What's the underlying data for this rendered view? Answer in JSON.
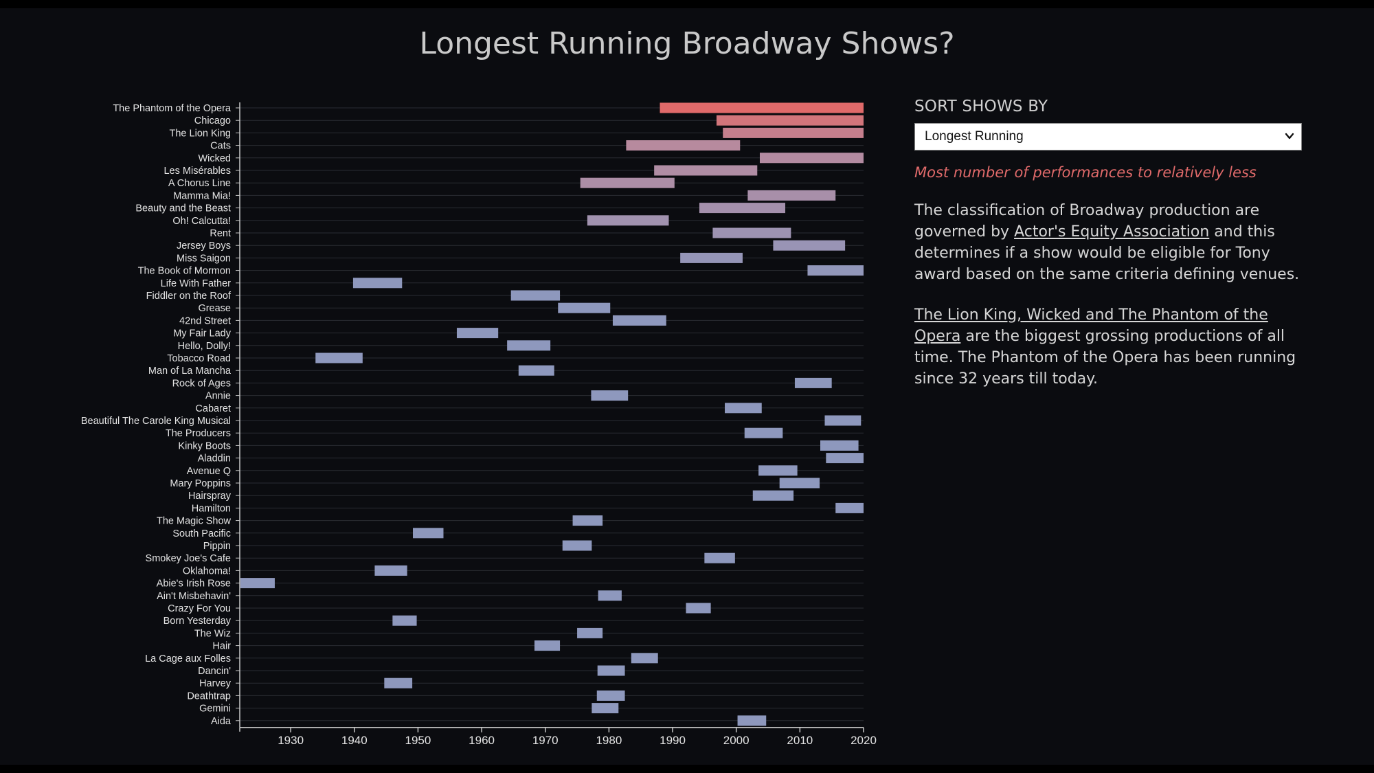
{
  "title": "Longest Running Broadway Shows?",
  "colors": {
    "page_bg": "#0b0c10",
    "accent_red": "#e06a6a",
    "bar_mauve": "#b78a9e",
    "bar_blue": "#8e98bd",
    "axis": "#c8c8c8"
  },
  "sidebar": {
    "sort_label": "SORT SHOWS BY",
    "sort_value": "Longest Running",
    "sort_hint": "Most number of performances to relatively less",
    "para1_before": "The classification of Broadway production are governed by ",
    "para1_link": "Actor's Equity Association",
    "para1_after": " and this determines if a show would be eligible for Tony award based on the same criteria defining venues.",
    "para2_link": "The Lion King, Wicked and The Phantom of the Opera",
    "para2_after": " are the biggest grossing productions of all time. The Phantom of the Opera has been running since 32 years till today."
  },
  "chart_data": {
    "type": "bar",
    "orientation": "horizontal-range",
    "title": "Longest Running Broadway Shows?",
    "xlim": [
      1922,
      2020
    ],
    "x_ticks": [
      1930,
      1940,
      1950,
      1960,
      1970,
      1980,
      1990,
      2000,
      2010,
      2020
    ],
    "categories": [
      "The Phantom of the Opera",
      "Chicago",
      "The Lion King",
      "Cats",
      "Wicked",
      "Les Misérables",
      "A Chorus Line",
      "Mamma Mia!",
      "Beauty and the Beast",
      "Oh! Calcutta!",
      "Rent",
      "Jersey Boys",
      "Miss Saigon",
      "The Book of Mormon",
      "Life With Father",
      "Fiddler on the Roof",
      "Grease",
      "42nd Street",
      "My Fair Lady",
      "Hello, Dolly!",
      "Tobacco Road",
      "Man of La Mancha",
      "Rock of Ages",
      "Annie",
      "Cabaret",
      "Beautiful The Carole King Musical",
      "The Producers",
      "Kinky Boots",
      "Aladdin",
      "Avenue Q",
      "Mary Poppins",
      "Hairspray",
      "Hamilton",
      "The Magic Show",
      "South Pacific",
      "Pippin",
      "Smokey Joe's Cafe",
      "Oklahoma!",
      "Abie's Irish Rose",
      "Ain't Misbehavin'",
      "Crazy For You",
      "Born Yesterday",
      "The Wiz",
      "Hair",
      "La Cage aux Folles",
      "Dancin'",
      "Harvey",
      "Deathtrap",
      "Gemini",
      "Aida"
    ],
    "start": [
      1988.0,
      1996.9,
      1997.9,
      1982.7,
      2003.7,
      1987.1,
      1975.5,
      2001.8,
      1994.2,
      1976.6,
      1996.3,
      2005.8,
      1991.2,
      2011.2,
      1939.8,
      1964.6,
      1972.0,
      1980.6,
      1956.1,
      1964.0,
      1933.9,
      1965.8,
      2009.2,
      1977.2,
      1998.2,
      2013.9,
      2001.3,
      2013.2,
      2014.1,
      2003.5,
      2006.8,
      2002.6,
      2015.6,
      1974.3,
      1949.2,
      1972.7,
      1995.0,
      1943.2,
      1922.1,
      1978.3,
      1992.1,
      1946.0,
      1975.0,
      1968.3,
      1983.5,
      1978.2,
      1944.7,
      1978.1,
      1977.3,
      2000.2
    ],
    "end": [
      2020,
      2020,
      2020,
      2000.6,
      2020,
      2003.3,
      1990.3,
      2015.6,
      2007.7,
      1989.4,
      2008.6,
      2017.1,
      2001.0,
      2020,
      1947.5,
      1972.3,
      1980.2,
      1989.0,
      1962.6,
      1970.8,
      1941.3,
      1971.4,
      2015.0,
      1983.0,
      2004.0,
      2019.6,
      2007.3,
      2019.2,
      2020,
      2009.6,
      2013.1,
      2009.0,
      2020,
      1979.0,
      1954.0,
      1977.3,
      1999.8,
      1948.3,
      1927.5,
      1982.0,
      1996.0,
      1949.8,
      1979.0,
      1972.3,
      1987.7,
      1982.5,
      1949.1,
      1982.5,
      1981.5,
      2004.7
    ]
  }
}
